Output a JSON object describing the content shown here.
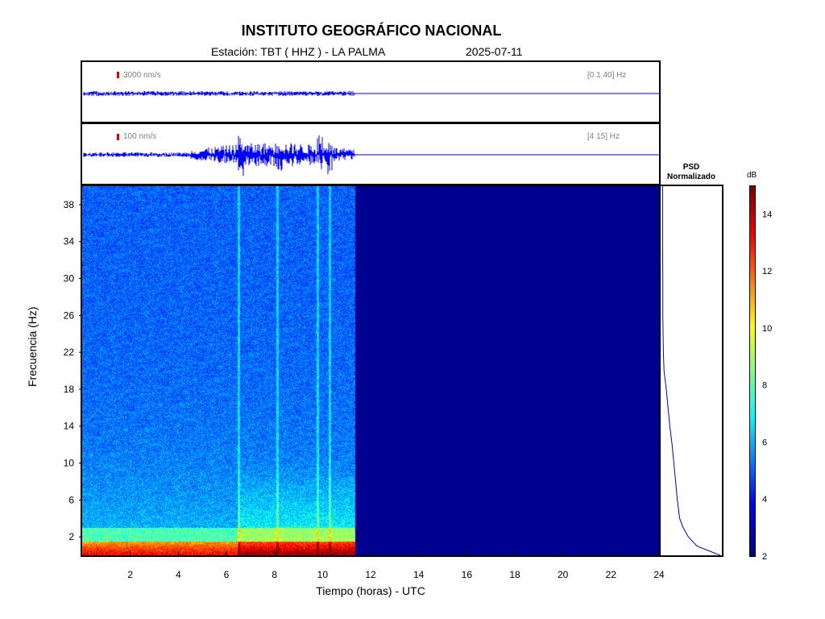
{
  "header": {
    "title": "INSTITUTO GEOGRÁFICO NACIONAL",
    "station": "Estación:  TBT ( HHZ ) - LA PALMA",
    "date": "2025-07-11"
  },
  "trace_top": {
    "amplitude_label": "3000 nm/s",
    "band_label": "[0.1 40] Hz",
    "colors": {
      "trace": "#0000ff",
      "scale_bar": "#e00000"
    }
  },
  "trace_bottom": {
    "amplitude_label": "100 nm/s",
    "band_label": "[4 15] Hz",
    "colors": {
      "trace": "#0000ff",
      "scale_bar": "#e00000"
    }
  },
  "psd": {
    "title_line1": "PSD",
    "title_line2": "Normalizado"
  },
  "colorbar": {
    "label": "dB",
    "ticks": [
      "2",
      "4",
      "6",
      "8",
      "10",
      "12",
      "14"
    ],
    "range": [
      2,
      15
    ],
    "colormap": "jet"
  },
  "chart_data": {
    "type": "heatmap",
    "title": "INSTITUTO GEOGRÁFICO NACIONAL",
    "xlabel": "Tiempo (horas) - UTC",
    "ylabel": "Frecuencia  (Hz)",
    "xlim": [
      0,
      24
    ],
    "ylim": [
      0,
      40
    ],
    "xticks": [
      2,
      4,
      6,
      8,
      10,
      12,
      14,
      16,
      18,
      20,
      22,
      24
    ],
    "yticks": [
      2,
      6,
      10,
      14,
      18,
      22,
      26,
      30,
      34,
      38
    ],
    "data_end_hour": 11.35,
    "background_color": "#00008f",
    "psd_profile": {
      "frequency_hz": [
        0,
        1,
        2,
        3,
        4,
        6,
        8,
        10,
        12,
        14,
        16,
        18,
        19,
        20,
        22,
        26,
        30,
        34,
        38,
        40
      ],
      "normalized_power": [
        1.0,
        0.6,
        0.45,
        0.36,
        0.3,
        0.26,
        0.23,
        0.2,
        0.17,
        0.13,
        0.1,
        0.07,
        0.05,
        0.03,
        0.02,
        0.01,
        0.01,
        0.005,
        0.005,
        0.005
      ]
    }
  }
}
